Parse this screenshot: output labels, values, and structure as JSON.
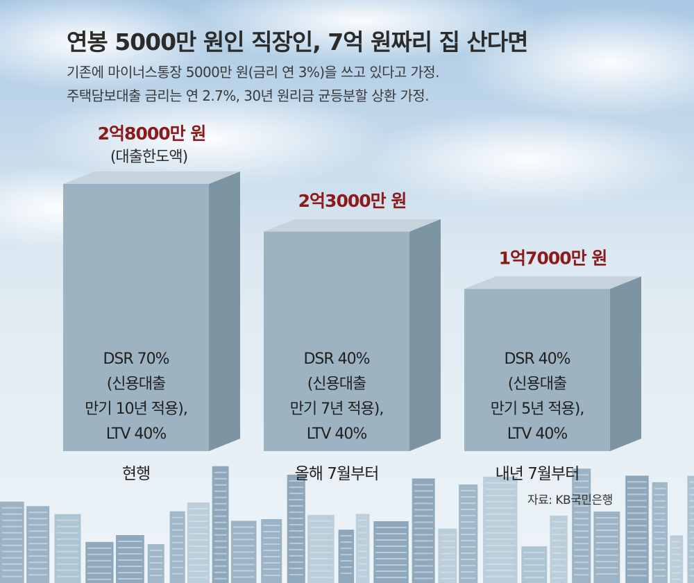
{
  "title": "연봉 5000만 원인 직장인, 7억 원짜리 집 산다면",
  "subtitle_lines": [
    "기존에 마이너스통장 5000만 원(금리 연 3%)을 쓰고 있다고 가정.",
    "주택담보대출 금리는 연 2.7%, 30년 원리금 균등분할 상환 가정."
  ],
  "source": "자료: KB국민은행",
  "colors": {
    "bar_front": "#9db3c2",
    "bar_top": "#c6d3dc",
    "bar_side": "#7d94a3",
    "value_label": "#8b1a1a",
    "text": "#2b2b2b"
  },
  "chart_data": {
    "type": "bar",
    "title": "연봉 5000만 원인 직장인, 7억 원짜리 집 산다면",
    "value_unit": "만 원",
    "categories": [
      "현행",
      "올해 7월부터",
      "내년 7월부터"
    ],
    "values": [
      28000,
      23000,
      17000
    ],
    "value_labels": [
      "2억8000만 원",
      "2억3000만 원",
      "1억7000만 원"
    ],
    "value_label_notes": [
      "(대출한도액)",
      "",
      ""
    ],
    "bar_notes": [
      [
        "DSR 70%",
        "(신용대출",
        "만기 10년 적용),",
        "LTV 40%"
      ],
      [
        "DSR 40%",
        "(신용대출",
        "만기 7년 적용),",
        "LTV 40%"
      ],
      [
        "DSR 40%",
        "(신용대출",
        "만기 5년 적용),",
        "LTV 40%"
      ]
    ],
    "grid": false,
    "legend": "none"
  }
}
